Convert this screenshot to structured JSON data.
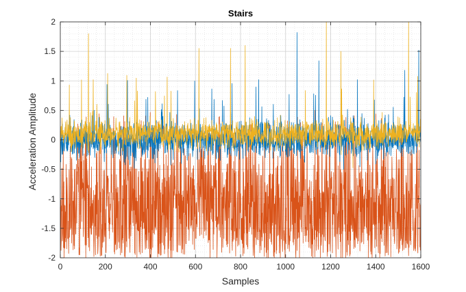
{
  "chart_data": {
    "type": "line",
    "title": "Stairs",
    "xlabel": "Samples",
    "ylabel": "Acceleration Amplitude",
    "xlim": [
      0,
      1600
    ],
    "ylim": [
      -2,
      2
    ],
    "xticks": [
      0,
      200,
      400,
      600,
      800,
      1000,
      1200,
      1400,
      1600
    ],
    "yticks": [
      -2,
      -1.5,
      -1,
      -0.5,
      0,
      0.5,
      1,
      1.5,
      2
    ],
    "grid": true,
    "minor_grid": true,
    "legend": "none",
    "n_samples": 1600,
    "series": [
      {
        "color": "#0072BD",
        "mean": 0.0,
        "spread": 0.16,
        "y_range": [
          -1.3,
          1.82
        ],
        "notable_peaks": [
          {
            "x": 388,
            "y": 0.72
          },
          {
            "x": 880,
            "y": 1.02
          },
          {
            "x": 1050,
            "y": 1.82
          },
          {
            "x": 1147,
            "y": 1.34
          },
          {
            "x": 1318,
            "y": 1.02
          },
          {
            "x": 1528,
            "y": 1.18
          },
          {
            "x": 1590,
            "y": 1.52
          }
        ]
      },
      {
        "color": "#D95319",
        "mean": -1.0,
        "spread": 0.45,
        "y_range": [
          -2,
          0.6
        ],
        "notable_peaks": []
      },
      {
        "color": "#EDB120",
        "mean": 0.1,
        "spread": 0.12,
        "y_range": [
          -0.55,
          2.05
        ],
        "notable_peaks": [
          {
            "x": 125,
            "y": 1.8
          },
          {
            "x": 615,
            "y": 1.55
          },
          {
            "x": 755,
            "y": 1.55
          },
          {
            "x": 820,
            "y": 1.6
          },
          {
            "x": 1180,
            "y": 2.05
          },
          {
            "x": 1245,
            "y": 1.5
          },
          {
            "x": 1545,
            "y": 2.05
          },
          {
            "x": 1605,
            "y": 1.35
          }
        ]
      }
    ]
  }
}
